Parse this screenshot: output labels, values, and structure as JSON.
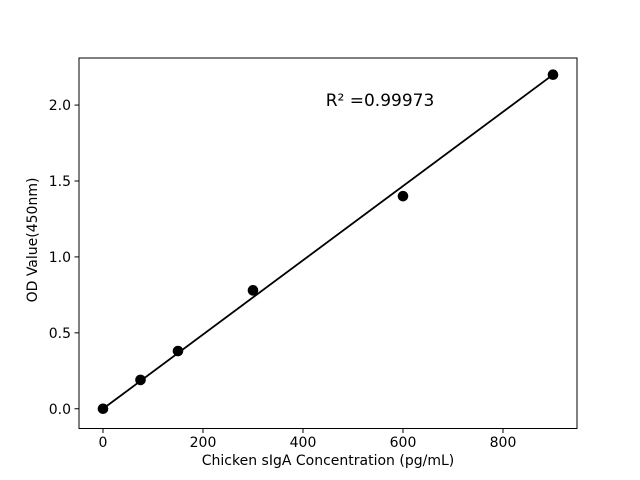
{
  "chart_data": {
    "type": "scatter",
    "title": "",
    "xlabel": "Chicken sIgA Concentration (pg/mL)",
    "ylabel": "OD Value(450nm)",
    "annotation": "R² =0.99973",
    "r_squared": 0.99973,
    "x": [
      0,
      75,
      150,
      300,
      600,
      900
    ],
    "y": [
      0.0,
      0.19,
      0.38,
      0.78,
      1.4,
      2.2
    ],
    "fit_line": {
      "x": [
        0,
        900
      ],
      "y": [
        0.0,
        2.2
      ]
    },
    "xticks": [
      0,
      200,
      400,
      600,
      800
    ],
    "xtick_labels": [
      "0",
      "200",
      "400",
      "600",
      "800"
    ],
    "yticks": [
      0.0,
      0.5,
      1.0,
      1.5,
      2.0
    ],
    "ytick_labels": [
      "0.0",
      "0.5",
      "1.0",
      "1.5",
      "2.0"
    ],
    "xlim": [
      -48,
      948
    ],
    "ylim": [
      -0.13,
      2.31
    ],
    "grid": false,
    "legend": null,
    "marker_color": "#000000",
    "line_color": "#000000",
    "axis_color": "#000000",
    "background_color": "#ffffff"
  }
}
